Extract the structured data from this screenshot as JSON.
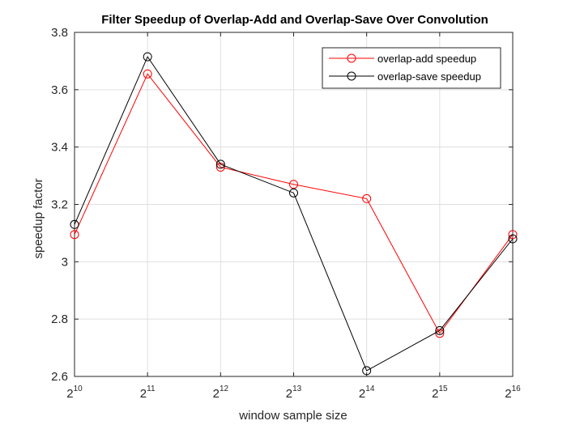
{
  "chart_data": {
    "type": "line",
    "title": "Filter Speedup of Overlap-Add and Overlap-Save Over Convolution",
    "xlabel": "window sample size",
    "ylabel": "speedup factor",
    "x_base": "2",
    "x_exponents": [
      "10",
      "11",
      "12",
      "13",
      "14",
      "15",
      "16"
    ],
    "x": [
      1024,
      2048,
      4096,
      8192,
      16384,
      32768,
      65536
    ],
    "x_scale": "log2",
    "ylim": [
      2.6,
      3.8
    ],
    "yticks": [
      "2.6",
      "2.8",
      "3",
      "3.2",
      "3.4",
      "3.6",
      "3.8"
    ],
    "ytick_values": [
      2.6,
      2.8,
      3.0,
      3.2,
      3.4,
      3.6,
      3.8
    ],
    "grid": true,
    "legend_position": "top-right",
    "series": [
      {
        "name": "overlap-add speedup",
        "color": "#ff0000",
        "marker": "circle",
        "values": [
          3.095,
          3.655,
          3.33,
          3.27,
          3.22,
          2.75,
          3.095
        ]
      },
      {
        "name": "overlap-save speedup",
        "color": "#000000",
        "marker": "circle",
        "values": [
          3.13,
          3.715,
          3.34,
          3.24,
          2.62,
          2.76,
          3.08
        ]
      }
    ]
  }
}
